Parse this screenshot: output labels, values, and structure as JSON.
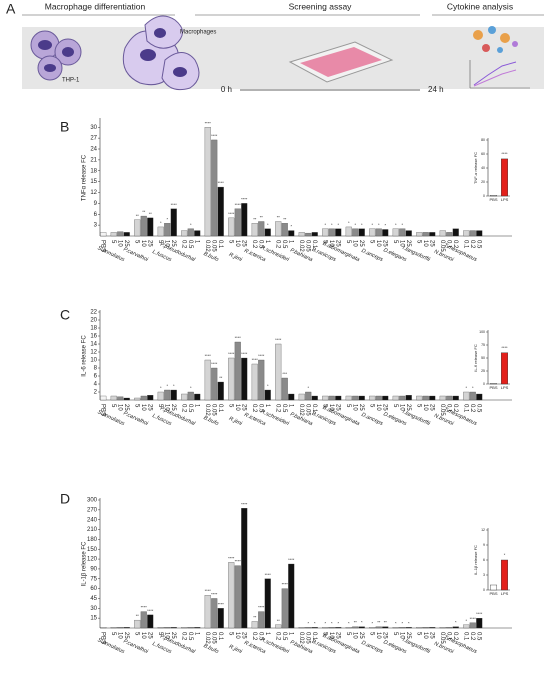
{
  "panel_labels": [
    "A",
    "B",
    "C",
    "D"
  ],
  "panel_a": {
    "stages": [
      "Macrophage differentiation",
      "Screening assay",
      "Cytokine analysis"
    ],
    "cell_labels": [
      "THP-1",
      "Macrophages"
    ],
    "times": [
      "0 h",
      "24 h"
    ]
  },
  "chart_data": [
    {
      "type": "grouped_bar",
      "ylabel": "TNFα release FC",
      "ylim": [
        0,
        32
      ],
      "yticks": [
        3,
        6,
        9,
        12,
        15,
        18,
        21,
        24,
        27,
        30
      ],
      "colors": [
        "#d4d4d4",
        "#8a8a8a",
        "#111111"
      ],
      "control": {
        "label": "PBS",
        "value": 1,
        "color": "#f4f4f4"
      },
      "groups": [
        {
          "name": "S.annulatus",
          "labels": [
            "5",
            "10",
            "25"
          ],
          "values": [
            1,
            1.2,
            1
          ],
          "stars": [
            null,
            null,
            null
          ]
        },
        {
          "name": "P.carvalhoi",
          "labels": [
            "5",
            "10",
            "25"
          ],
          "values": [
            4.5,
            5.5,
            5
          ],
          "stars": [
            "**",
            "**",
            "**"
          ]
        },
        {
          "name": "L.fuscus",
          "labels": [
            "5",
            "10",
            "25"
          ],
          "values": [
            2.5,
            3.5,
            7.5
          ],
          "stars": [
            "*",
            "*",
            "****"
          ]
        },
        {
          "name": "P.pseudodurhal",
          "labels": [
            "0.2",
            "0.5",
            "1"
          ],
          "values": [
            1.5,
            2,
            1.5
          ],
          "stars": [
            null,
            "*",
            null
          ]
        },
        {
          "name": "B.bufo",
          "labels": [
            "0.02",
            "0.05",
            "0.1"
          ],
          "values": [
            30,
            26.5,
            13.5
          ],
          "stars": [
            "****",
            "****",
            "****"
          ]
        },
        {
          "name": "R.jimi",
          "labels": [
            "5",
            "10",
            "25"
          ],
          "values": [
            5,
            7.5,
            9
          ],
          "stars": [
            "****",
            "****",
            "****"
          ]
        },
        {
          "name": "R.icterica",
          "labels": [
            "0.2",
            "0.5",
            "1"
          ],
          "values": [
            3.5,
            4,
            2
          ],
          "stars": [
            "**",
            "**",
            "*"
          ]
        },
        {
          "name": "R.schneideri",
          "labels": [
            "0.2",
            "0.5",
            "1"
          ],
          "values": [
            4,
            3.5,
            1.5
          ],
          "stars": [
            "**",
            "**",
            "*"
          ]
        },
        {
          "name": "P.bahiana",
          "labels": [
            "0.02",
            "0.05",
            "0.1"
          ],
          "values": [
            1,
            0.8,
            1
          ],
          "stars": [
            null,
            null,
            null
          ]
        },
        {
          "name": "B.ranicops",
          "labels": [
            "5",
            "10",
            "25"
          ],
          "values": [
            2,
            2,
            2
          ],
          "stars": [
            "*",
            "*",
            "*"
          ]
        },
        {
          "name": "B.albomarginata",
          "labels": [
            "5",
            "10",
            "25"
          ],
          "values": [
            2.5,
            2,
            2
          ],
          "stars": [
            "*",
            "*",
            "*"
          ]
        },
        {
          "name": "D.anceps",
          "labels": [
            "5",
            "10",
            "25"
          ],
          "values": [
            2,
            2,
            1.8
          ],
          "stars": [
            "*",
            "*",
            "*"
          ]
        },
        {
          "name": "D.elegans",
          "labels": [
            "5",
            "10",
            "25"
          ],
          "values": [
            2,
            2,
            1.5
          ],
          "stars": [
            "*",
            "*",
            null
          ]
        },
        {
          "name": "I.langsdorffii",
          "labels": [
            "5",
            "10",
            "25"
          ],
          "values": [
            1,
            1,
            1
          ],
          "stars": [
            null,
            null,
            null
          ]
        },
        {
          "name": "N.brunoi",
          "labels": [
            "0.05",
            "0.1",
            "0.2"
          ],
          "values": [
            1.5,
            1,
            2
          ],
          "stars": [
            null,
            null,
            null
          ]
        },
        {
          "name": "T.mesophaeus",
          "labels": [
            "0.1",
            "0.2",
            "0.5"
          ],
          "values": [
            1.5,
            1.5,
            1.5
          ],
          "stars": [
            null,
            null,
            null
          ]
        }
      ]
    },
    {
      "type": "bar",
      "ylabel": "TNF-α release FC",
      "categories": [
        "PBS",
        "LPS"
      ],
      "values": [
        1,
        53
      ],
      "colors": [
        "#ffffff",
        "#e3201b"
      ],
      "ylim": [
        0,
        80
      ],
      "yticks": [
        0,
        20,
        40,
        60,
        80
      ],
      "annotation": "****"
    },
    {
      "type": "grouped_bar",
      "ylabel": "IL-6 release FC",
      "ylim": [
        0,
        22
      ],
      "yticks": [
        2,
        4,
        6,
        8,
        10,
        12,
        14,
        16,
        18,
        20,
        22
      ],
      "colors": [
        "#d4d4d4",
        "#8a8a8a",
        "#111111"
      ],
      "control": {
        "label": "PBS",
        "value": 1,
        "color": "#f4f4f4"
      },
      "groups": [
        {
          "name": "S.annulatus",
          "labels": [
            "5",
            "10",
            "25"
          ],
          "values": [
            1,
            0.8,
            0.5
          ],
          "stars": [
            null,
            null,
            null
          ]
        },
        {
          "name": "P.carvalhoi",
          "labels": [
            "5",
            "10",
            "25"
          ],
          "values": [
            0.5,
            1,
            1.2
          ],
          "stars": [
            null,
            null,
            null
          ]
        },
        {
          "name": "L.fuscus",
          "labels": [
            "5",
            "10",
            "25"
          ],
          "values": [
            2,
            2.5,
            2.5
          ],
          "stars": [
            "*",
            "*",
            "*"
          ]
        },
        {
          "name": "P.pseudodurhal",
          "labels": [
            "0.2",
            "0.5",
            "1"
          ],
          "values": [
            1.5,
            2,
            1.5
          ],
          "stars": [
            null,
            "*",
            null
          ]
        },
        {
          "name": "B.bufo",
          "labels": [
            "0.02",
            "0.05",
            "0.1"
          ],
          "values": [
            10,
            8,
            4.5
          ],
          "stars": [
            "****",
            "****",
            "**"
          ]
        },
        {
          "name": "R.jimi",
          "labels": [
            "5",
            "10",
            "25"
          ],
          "values": [
            10.5,
            14.5,
            10.5
          ],
          "stars": [
            "****",
            "****",
            "****"
          ]
        },
        {
          "name": "R.icterica",
          "labels": [
            "0.2",
            "0.5",
            "1"
          ],
          "values": [
            9,
            10,
            2.5
          ],
          "stars": [
            "****",
            "****",
            "*"
          ]
        },
        {
          "name": "R.schneideri",
          "labels": [
            "0.2",
            "0.5",
            "1"
          ],
          "values": [
            14,
            5.5,
            1.5
          ],
          "stars": [
            "****",
            "***",
            null
          ]
        },
        {
          "name": "P.bahiana",
          "labels": [
            "0.02",
            "0.05",
            "0.1"
          ],
          "values": [
            1.5,
            2,
            1
          ],
          "stars": [
            null,
            "*",
            null
          ]
        },
        {
          "name": "B.ranicops",
          "labels": [
            "5",
            "10",
            "25"
          ],
          "values": [
            1,
            1,
            1
          ],
          "stars": [
            null,
            null,
            null
          ]
        },
        {
          "name": "B.albomarginata",
          "labels": [
            "5",
            "10",
            "25"
          ],
          "values": [
            1,
            1,
            1
          ],
          "stars": [
            null,
            null,
            null
          ]
        },
        {
          "name": "D.anceps",
          "labels": [
            "5",
            "10",
            "25"
          ],
          "values": [
            1,
            1,
            1
          ],
          "stars": [
            null,
            null,
            null
          ]
        },
        {
          "name": "D.elegans",
          "labels": [
            "5",
            "10",
            "25"
          ],
          "values": [
            1,
            1,
            1.2
          ],
          "stars": [
            null,
            null,
            null
          ]
        },
        {
          "name": "I.langsdorffii",
          "labels": [
            "5",
            "10",
            "25"
          ],
          "values": [
            1,
            1,
            1
          ],
          "stars": [
            null,
            null,
            null
          ]
        },
        {
          "name": "N.brunoi",
          "labels": [
            "0.05",
            "0.1",
            "0.2"
          ],
          "values": [
            1,
            1,
            1
          ],
          "stars": [
            null,
            null,
            null
          ]
        },
        {
          "name": "T.mesophaeus",
          "labels": [
            "0.1",
            "0.2",
            "0.5"
          ],
          "values": [
            2,
            2,
            1.5
          ],
          "stars": [
            "*",
            "*",
            null
          ]
        }
      ]
    },
    {
      "type": "bar",
      "ylabel": "IL-6 release FC",
      "categories": [
        "PBS",
        "LPS"
      ],
      "values": [
        1,
        60
      ],
      "colors": [
        "#ffffff",
        "#e3201b"
      ],
      "ylim": [
        0,
        100
      ],
      "yticks": [
        0,
        25,
        50,
        75,
        100
      ],
      "annotation": "****"
    },
    {
      "type": "grouped_bar",
      "ylabel": "IL-1β release FC",
      "ylim": [
        0,
        300
      ],
      "yscale": "even-ticks",
      "yticks": [
        15,
        30,
        45,
        60,
        75,
        90,
        120,
        150,
        180,
        210,
        240,
        270,
        300
      ],
      "colors": [
        "#d4d4d4",
        "#8a8a8a",
        "#111111"
      ],
      "control": {
        "label": "PBS",
        "value": 1,
        "color": "#f4f4f4"
      },
      "groups": [
        {
          "name": "S.annulatus",
          "labels": [
            "5",
            "10",
            "25"
          ],
          "values": [
            1,
            1,
            1
          ],
          "stars": [
            null,
            null,
            null
          ]
        },
        {
          "name": "P.carvalhoi",
          "labels": [
            "5",
            "10",
            "25"
          ],
          "values": [
            12,
            25,
            20
          ],
          "stars": [
            "**",
            "****",
            "****"
          ]
        },
        {
          "name": "L.fuscus",
          "labels": [
            "5",
            "10",
            "25"
          ],
          "values": [
            1,
            1,
            1
          ],
          "stars": [
            null,
            null,
            null
          ]
        },
        {
          "name": "P.pseudodurhal",
          "labels": [
            "0.2",
            "0.5",
            "1"
          ],
          "values": [
            1,
            1,
            1
          ],
          "stars": [
            null,
            null,
            null
          ]
        },
        {
          "name": "B.bufo",
          "labels": [
            "0.02",
            "0.05",
            "0.1"
          ],
          "values": [
            50,
            45,
            30
          ],
          "stars": [
            "****",
            "****",
            "****"
          ]
        },
        {
          "name": "R.jimi",
          "labels": [
            "5",
            "10",
            "25"
          ],
          "values": [
            110,
            100,
            275
          ],
          "stars": [
            "****",
            "****",
            "****"
          ]
        },
        {
          "name": "R.icterica",
          "labels": [
            "0.2",
            "0.5",
            "1"
          ],
          "values": [
            10,
            25,
            75
          ],
          "stars": [
            "**",
            "****",
            "****"
          ]
        },
        {
          "name": "R.schneideri",
          "labels": [
            "0.2",
            "0.5",
            "1"
          ],
          "values": [
            5,
            60,
            105
          ],
          "stars": [
            "**",
            "****",
            "****"
          ]
        },
        {
          "name": "P.bahiana",
          "labels": [
            "0.02",
            "0.05",
            "0.1"
          ],
          "values": [
            1,
            1,
            1
          ],
          "stars": [
            null,
            "*",
            "*"
          ]
        },
        {
          "name": "B.ranicops",
          "labels": [
            "5",
            "10",
            "25"
          ],
          "values": [
            1,
            1,
            1
          ],
          "stars": [
            "*",
            "*",
            "*"
          ]
        },
        {
          "name": "B.albomarginata",
          "labels": [
            "5",
            "10",
            "25"
          ],
          "values": [
            1,
            2,
            2
          ],
          "stars": [
            "*",
            "**",
            "*"
          ]
        },
        {
          "name": "D.anceps",
          "labels": [
            "5",
            "10",
            "25"
          ],
          "values": [
            1,
            2,
            2
          ],
          "stars": [
            "*",
            "**",
            "**"
          ]
        },
        {
          "name": "D.elegans",
          "labels": [
            "5",
            "10",
            "25"
          ],
          "values": [
            1,
            1,
            1
          ],
          "stars": [
            "*",
            "*",
            "*"
          ]
        },
        {
          "name": "I.langsdorffii",
          "labels": [
            "5",
            "10",
            "25"
          ],
          "values": [
            1,
            1,
            1
          ],
          "stars": [
            null,
            null,
            null
          ]
        },
        {
          "name": "N.brunoi",
          "labels": [
            "0.05",
            "0.1",
            "0.2"
          ],
          "values": [
            1,
            1,
            2
          ],
          "stars": [
            null,
            null,
            "*"
          ]
        },
        {
          "name": "T.mesophaeus",
          "labels": [
            "0.1",
            "0.2",
            "0.5"
          ],
          "values": [
            5,
            8,
            15
          ],
          "stars": [
            "*",
            "****",
            "****"
          ]
        }
      ]
    },
    {
      "type": "bar",
      "ylabel": "IL-1β release FC",
      "categories": [
        "PBS",
        "LPS"
      ],
      "values": [
        1,
        6
      ],
      "colors": [
        "#ffffff",
        "#e3201b"
      ],
      "ylim": [
        0,
        12
      ],
      "yticks": [
        0,
        3,
        6,
        9,
        12
      ],
      "annotation": "*"
    }
  ]
}
